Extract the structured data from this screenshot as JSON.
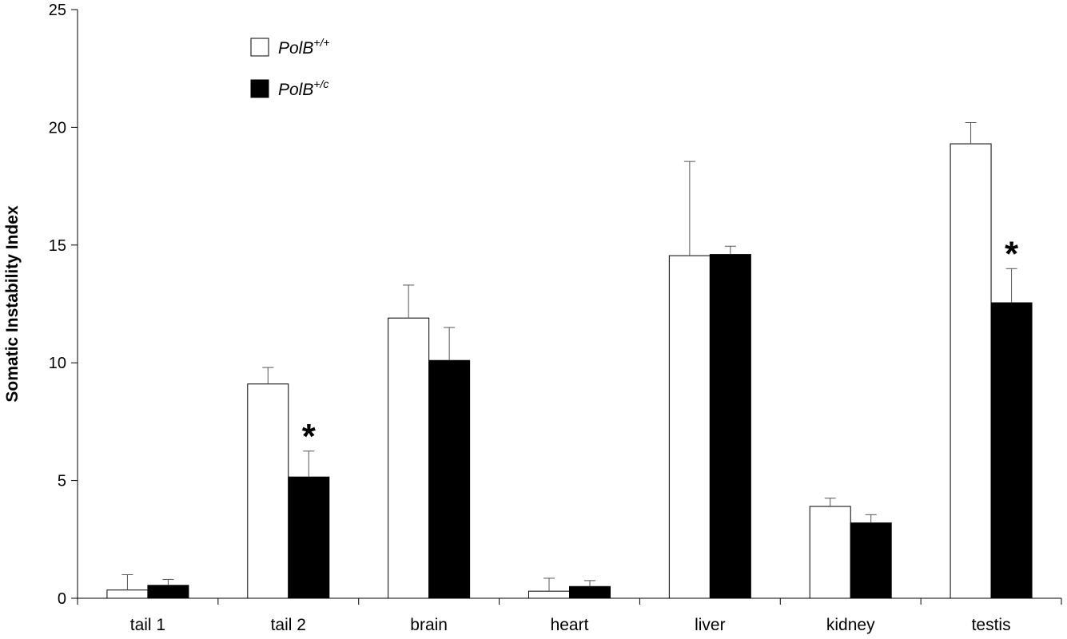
{
  "chart_data": {
    "type": "bar",
    "title": "",
    "xlabel": "",
    "ylabel": "Somatic Instability Index",
    "ylim": [
      0,
      25
    ],
    "yticks": [
      "0",
      "5",
      "10",
      "15",
      "20",
      "25"
    ],
    "categories": [
      "tail 1",
      "tail 2",
      "brain",
      "heart",
      "liver",
      "kidney",
      "testis"
    ],
    "series": [
      {
        "name": "PolB",
        "name_sup": "+/+",
        "color": "#ffffff",
        "stroke": "#000000",
        "values": [
          0.35,
          9.1,
          11.9,
          0.3,
          14.55,
          3.9,
          19.3
        ],
        "errors": [
          0.65,
          0.7,
          1.4,
          0.55,
          4.0,
          0.35,
          0.9
        ]
      },
      {
        "name": "PolB",
        "name_sup": "+/c",
        "color": "#000000",
        "stroke": "#000000",
        "values": [
          0.55,
          5.15,
          10.1,
          0.5,
          14.6,
          3.2,
          12.55
        ],
        "errors": [
          0.25,
          1.1,
          1.4,
          0.25,
          0.35,
          0.35,
          1.45
        ]
      }
    ],
    "annotations": [
      {
        "category": "tail 2",
        "series": 1,
        "text": "*"
      },
      {
        "category": "testis",
        "series": 1,
        "text": "*"
      }
    ],
    "legend_position": "top-left",
    "grid": false
  }
}
